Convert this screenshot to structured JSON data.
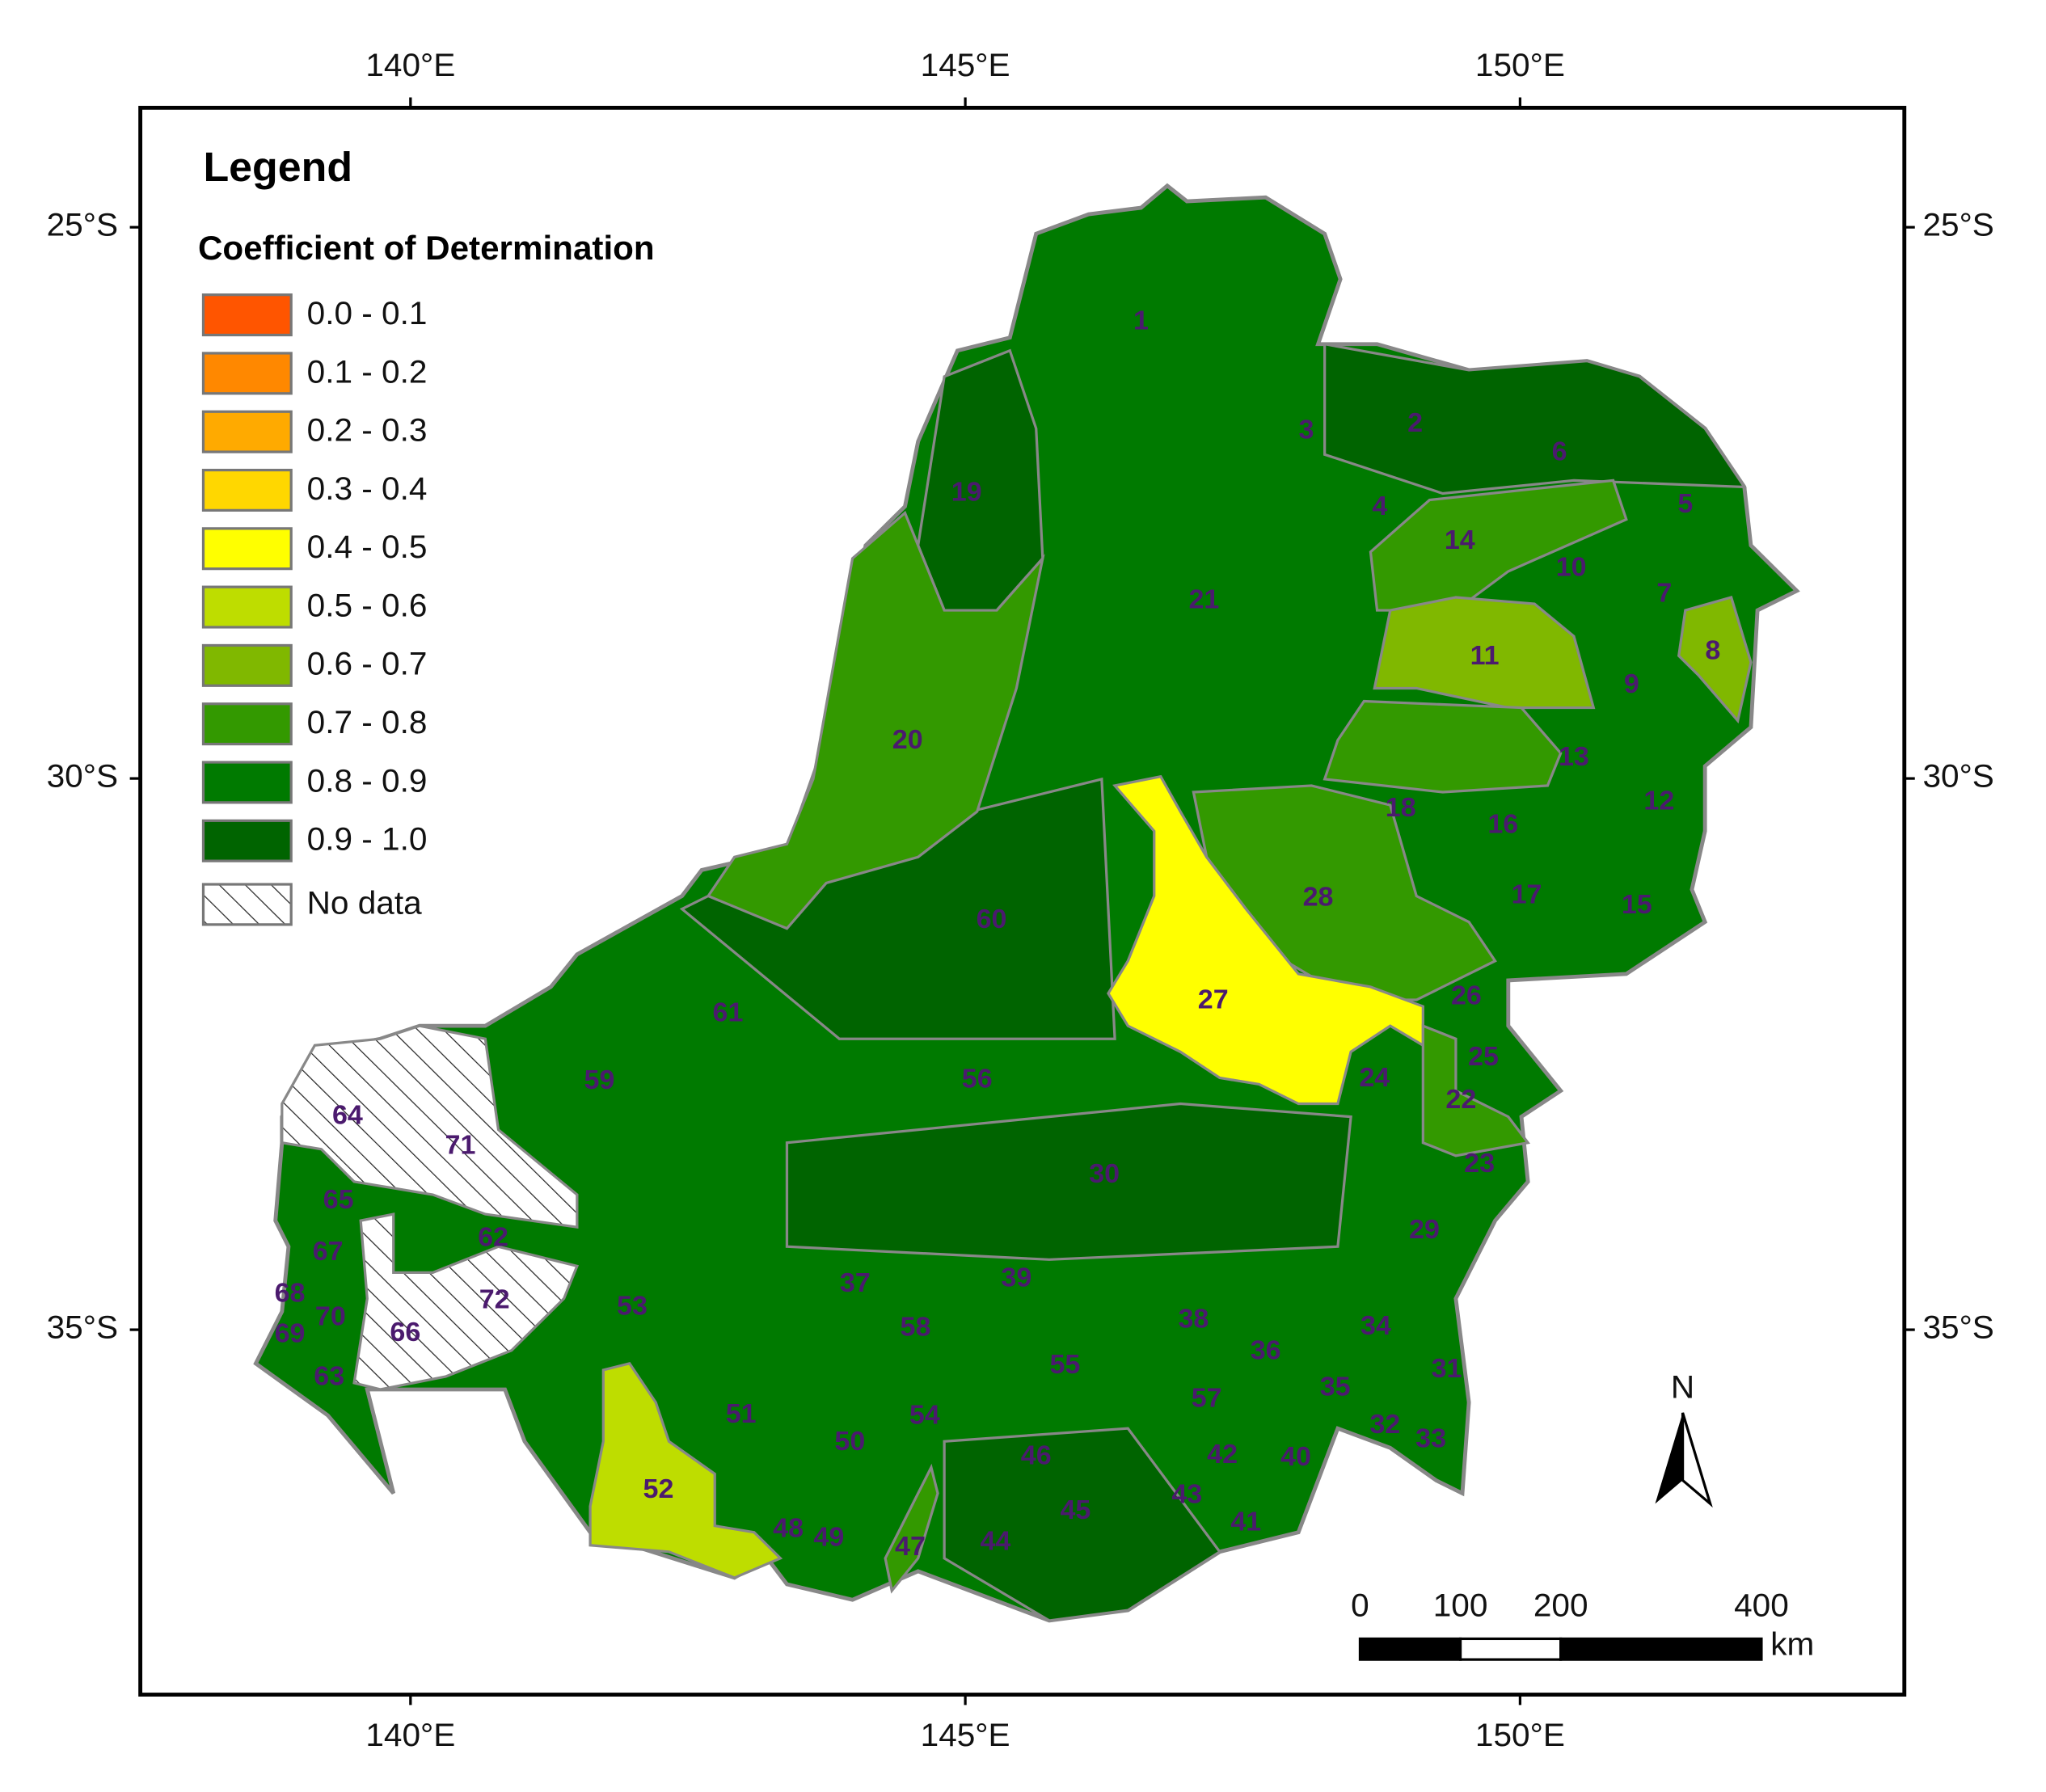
{
  "map": {
    "axes": {
      "longitude": [
        {
          "value": 140,
          "label": "140°E"
        },
        {
          "value": 145,
          "label": "145°E"
        },
        {
          "value": 150,
          "label": "150°E"
        }
      ],
      "latitude": [
        {
          "value": 25,
          "label": "25°S"
        },
        {
          "value": 30,
          "label": "30°S"
        },
        {
          "value": 35,
          "label": "35°S"
        }
      ]
    },
    "legend": {
      "title": "Legend",
      "subtitle": "Coefficient of Determination",
      "items": [
        {
          "label": "0.0 - 0.1",
          "color": "#ff5500"
        },
        {
          "label": "0.1 - 0.2",
          "color": "#ff8800"
        },
        {
          "label": "0.2 - 0.3",
          "color": "#ffaa00"
        },
        {
          "label": "0.3 - 0.4",
          "color": "#ffd700"
        },
        {
          "label": "0.4 - 0.5",
          "color": "#ffff00"
        },
        {
          "label": "0.5 - 0.6",
          "color": "#bedd00"
        },
        {
          "label": "0.6 - 0.7",
          "color": "#80b800"
        },
        {
          "label": "0.7 - 0.8",
          "color": "#339900"
        },
        {
          "label": "0.8 - 0.9",
          "color": "#007a00"
        },
        {
          "label": "0.9 - 1.0",
          "color": "#006400"
        },
        {
          "label": "No data"
        }
      ]
    },
    "regions": [
      "1",
      "2",
      "3",
      "4",
      "5",
      "6",
      "7",
      "8",
      "9",
      "10",
      "11",
      "12",
      "13",
      "14",
      "15",
      "16",
      "17",
      "18",
      "19",
      "20",
      "21",
      "22",
      "23",
      "24",
      "25",
      "26",
      "27",
      "28",
      "29",
      "30",
      "31",
      "32",
      "33",
      "34",
      "35",
      "36",
      "37",
      "38",
      "39",
      "40",
      "41",
      "42",
      "43",
      "44",
      "45",
      "46",
      "47",
      "48",
      "49",
      "50",
      "51",
      "52",
      "53",
      "54",
      "55",
      "56",
      "57",
      "58",
      "59",
      "60",
      "61",
      "62",
      "63",
      "64",
      "65",
      "66",
      "67",
      "68",
      "69",
      "70",
      "71",
      "72"
    ],
    "scale_bar": {
      "ticks": [
        0,
        100,
        200,
        400
      ],
      "unit": "km"
    },
    "north_arrow": "N"
  }
}
